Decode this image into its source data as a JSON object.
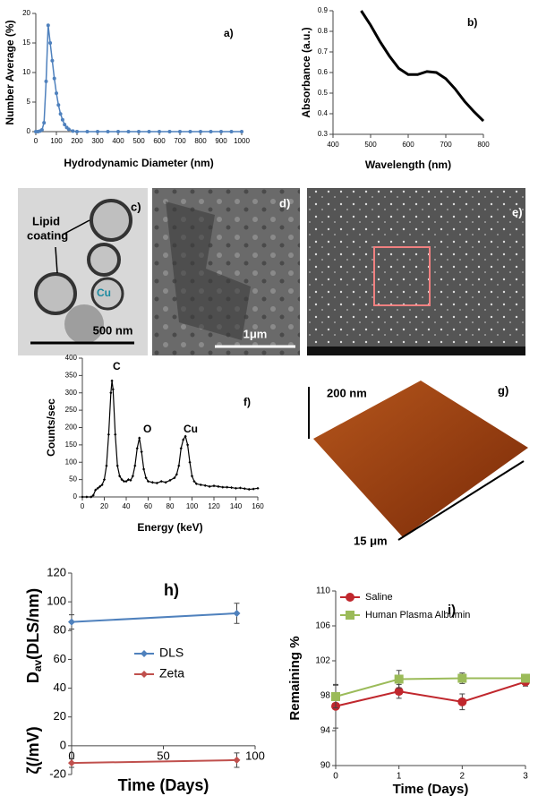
{
  "chart_data": [
    {
      "type": "line",
      "xlabel": "Hydrodynamic Diameter (nm)",
      "ylabel": "Number Average (%)",
      "annotations": [
        "a)"
      ],
      "x": [
        0,
        10,
        20,
        30,
        40,
        50,
        60,
        70,
        80,
        90,
        100,
        110,
        120,
        130,
        140,
        150,
        160,
        180,
        200,
        250,
        300,
        350,
        400,
        450,
        500,
        550,
        600,
        650,
        700,
        750,
        800,
        850,
        900,
        950,
        1000
      ],
      "values": [
        0,
        0,
        0.1,
        0.3,
        1.5,
        8.5,
        18,
        15,
        12,
        9,
        6.5,
        4.5,
        3,
        2,
        1.2,
        0.7,
        0.4,
        0.1,
        0,
        0,
        0,
        0,
        0,
        0,
        0,
        0,
        0,
        0,
        0,
        0,
        0,
        0,
        0,
        0,
        0
      ],
      "color": "#4f81bd",
      "xlim": [
        0,
        1000
      ],
      "ylim": [
        0,
        20
      ],
      "xticks": [
        0,
        100,
        200,
        300,
        400,
        500,
        600,
        700,
        800,
        900,
        1000
      ],
      "yticks": [
        0,
        5,
        10,
        15,
        20
      ]
    },
    {
      "type": "line",
      "xlabel": "Wavelength (nm)",
      "ylabel": "Absorbance (a.u.)",
      "annotations": [
        "b)"
      ],
      "x": [
        475,
        500,
        525,
        550,
        575,
        600,
        625,
        650,
        675,
        700,
        725,
        750,
        775,
        800
      ],
      "values": [
        0.9,
        0.83,
        0.75,
        0.68,
        0.62,
        0.59,
        0.59,
        0.605,
        0.6,
        0.57,
        0.52,
        0.46,
        0.41,
        0.365
      ],
      "color": "#000000",
      "xlim": [
        400,
        800
      ],
      "ylim": [
        0.3,
        0.9
      ],
      "xticks": [
        400,
        500,
        600,
        700,
        800
      ],
      "yticks": [
        0.3,
        0.4,
        0.5,
        0.6,
        0.7,
        0.8,
        0.9
      ]
    },
    {
      "type": "line",
      "xlabel": "Energy (keV)",
      "ylabel": "Counts/sec",
      "annotations": [
        "C",
        "O",
        "Cu",
        "f)"
      ],
      "x": [
        0,
        4,
        8,
        10,
        12,
        14,
        16,
        18,
        20,
        22,
        24,
        26,
        27,
        28,
        30,
        32,
        34,
        36,
        38,
        40,
        42,
        44,
        46,
        48,
        50,
        52,
        54,
        56,
        58,
        60,
        64,
        68,
        72,
        76,
        80,
        84,
        86,
        88,
        90,
        92,
        94,
        96,
        98,
        100,
        102,
        104,
        108,
        112,
        116,
        120,
        124,
        128,
        132,
        136,
        140,
        144,
        148,
        152,
        156,
        160
      ],
      "values": [
        0,
        0,
        0,
        5,
        20,
        25,
        30,
        35,
        50,
        90,
        180,
        300,
        335,
        310,
        180,
        90,
        60,
        50,
        45,
        45,
        50,
        48,
        60,
        90,
        140,
        170,
        130,
        80,
        55,
        45,
        42,
        40,
        45,
        42,
        48,
        55,
        65,
        90,
        140,
        165,
        175,
        150,
        100,
        60,
        45,
        38,
        35,
        33,
        30,
        32,
        30,
        28,
        28,
        27,
        25,
        26,
        24,
        22,
        23,
        25
      ],
      "color": "#000000",
      "xlim": [
        0,
        160
      ],
      "ylim": [
        0,
        400
      ],
      "xticks": [
        0,
        20,
        40,
        60,
        80,
        100,
        120,
        140,
        160
      ],
      "yticks": [
        0,
        50,
        100,
        150,
        200,
        250,
        300,
        350,
        400
      ]
    },
    {
      "type": "line",
      "xlabel": "Time (Days)",
      "ylabel": "D",
      "ylabel_sub": "av",
      "ylabel_rest": "(DLS/nm)",
      "y2label": "ζ(/mV)",
      "annotations": [
        "h)"
      ],
      "x": [
        0,
        90
      ],
      "series": [
        {
          "name": "DLS",
          "color": "#4f81bd",
          "values": [
            86,
            92
          ],
          "errors": [
            5,
            7
          ]
        },
        {
          "name": "Zeta",
          "color": "#c0504d",
          "values": [
            -12,
            -10
          ],
          "errors": [
            3,
            5
          ]
        }
      ],
      "xlim": [
        0,
        100
      ],
      "ylim": [
        -20,
        120
      ],
      "xticks": [
        0,
        50,
        100
      ],
      "yticks": [
        -20,
        0,
        20,
        40,
        60,
        80,
        100,
        120
      ]
    },
    {
      "type": "line",
      "xlabel": "Time (Days)",
      "ylabel": "Remaining %",
      "annotations": [
        "i)"
      ],
      "x": [
        0,
        1,
        2,
        3
      ],
      "series": [
        {
          "name": "Saline",
          "color": "#c0272d",
          "values": [
            96.8,
            98.5,
            97.3,
            99.6
          ],
          "errors": [
            2.5,
            0.8,
            0.9,
            0.5
          ]
        },
        {
          "name": "Human Plasma Albumin",
          "color": "#9bbb59",
          "values": [
            97.9,
            99.9,
            100,
            100
          ],
          "errors": [
            1.3,
            1,
            0.6,
            0.4
          ]
        }
      ],
      "xlim": [
        0,
        3
      ],
      "ylim": [
        90,
        110
      ],
      "xticks": [
        0,
        1,
        2,
        3
      ],
      "yticks": [
        90,
        94,
        98,
        102,
        106,
        110
      ]
    }
  ],
  "images": {
    "c": {
      "label": "c)",
      "lipid": "Lipid",
      "coating": "coating",
      "cu": "Cu",
      "scale": "500 nm"
    },
    "d": {
      "label": "d)",
      "scale": "1μm"
    },
    "e": {
      "label": "e)"
    },
    "g": {
      "label": "g)",
      "height": "200 nm",
      "width": "15 μm"
    }
  }
}
